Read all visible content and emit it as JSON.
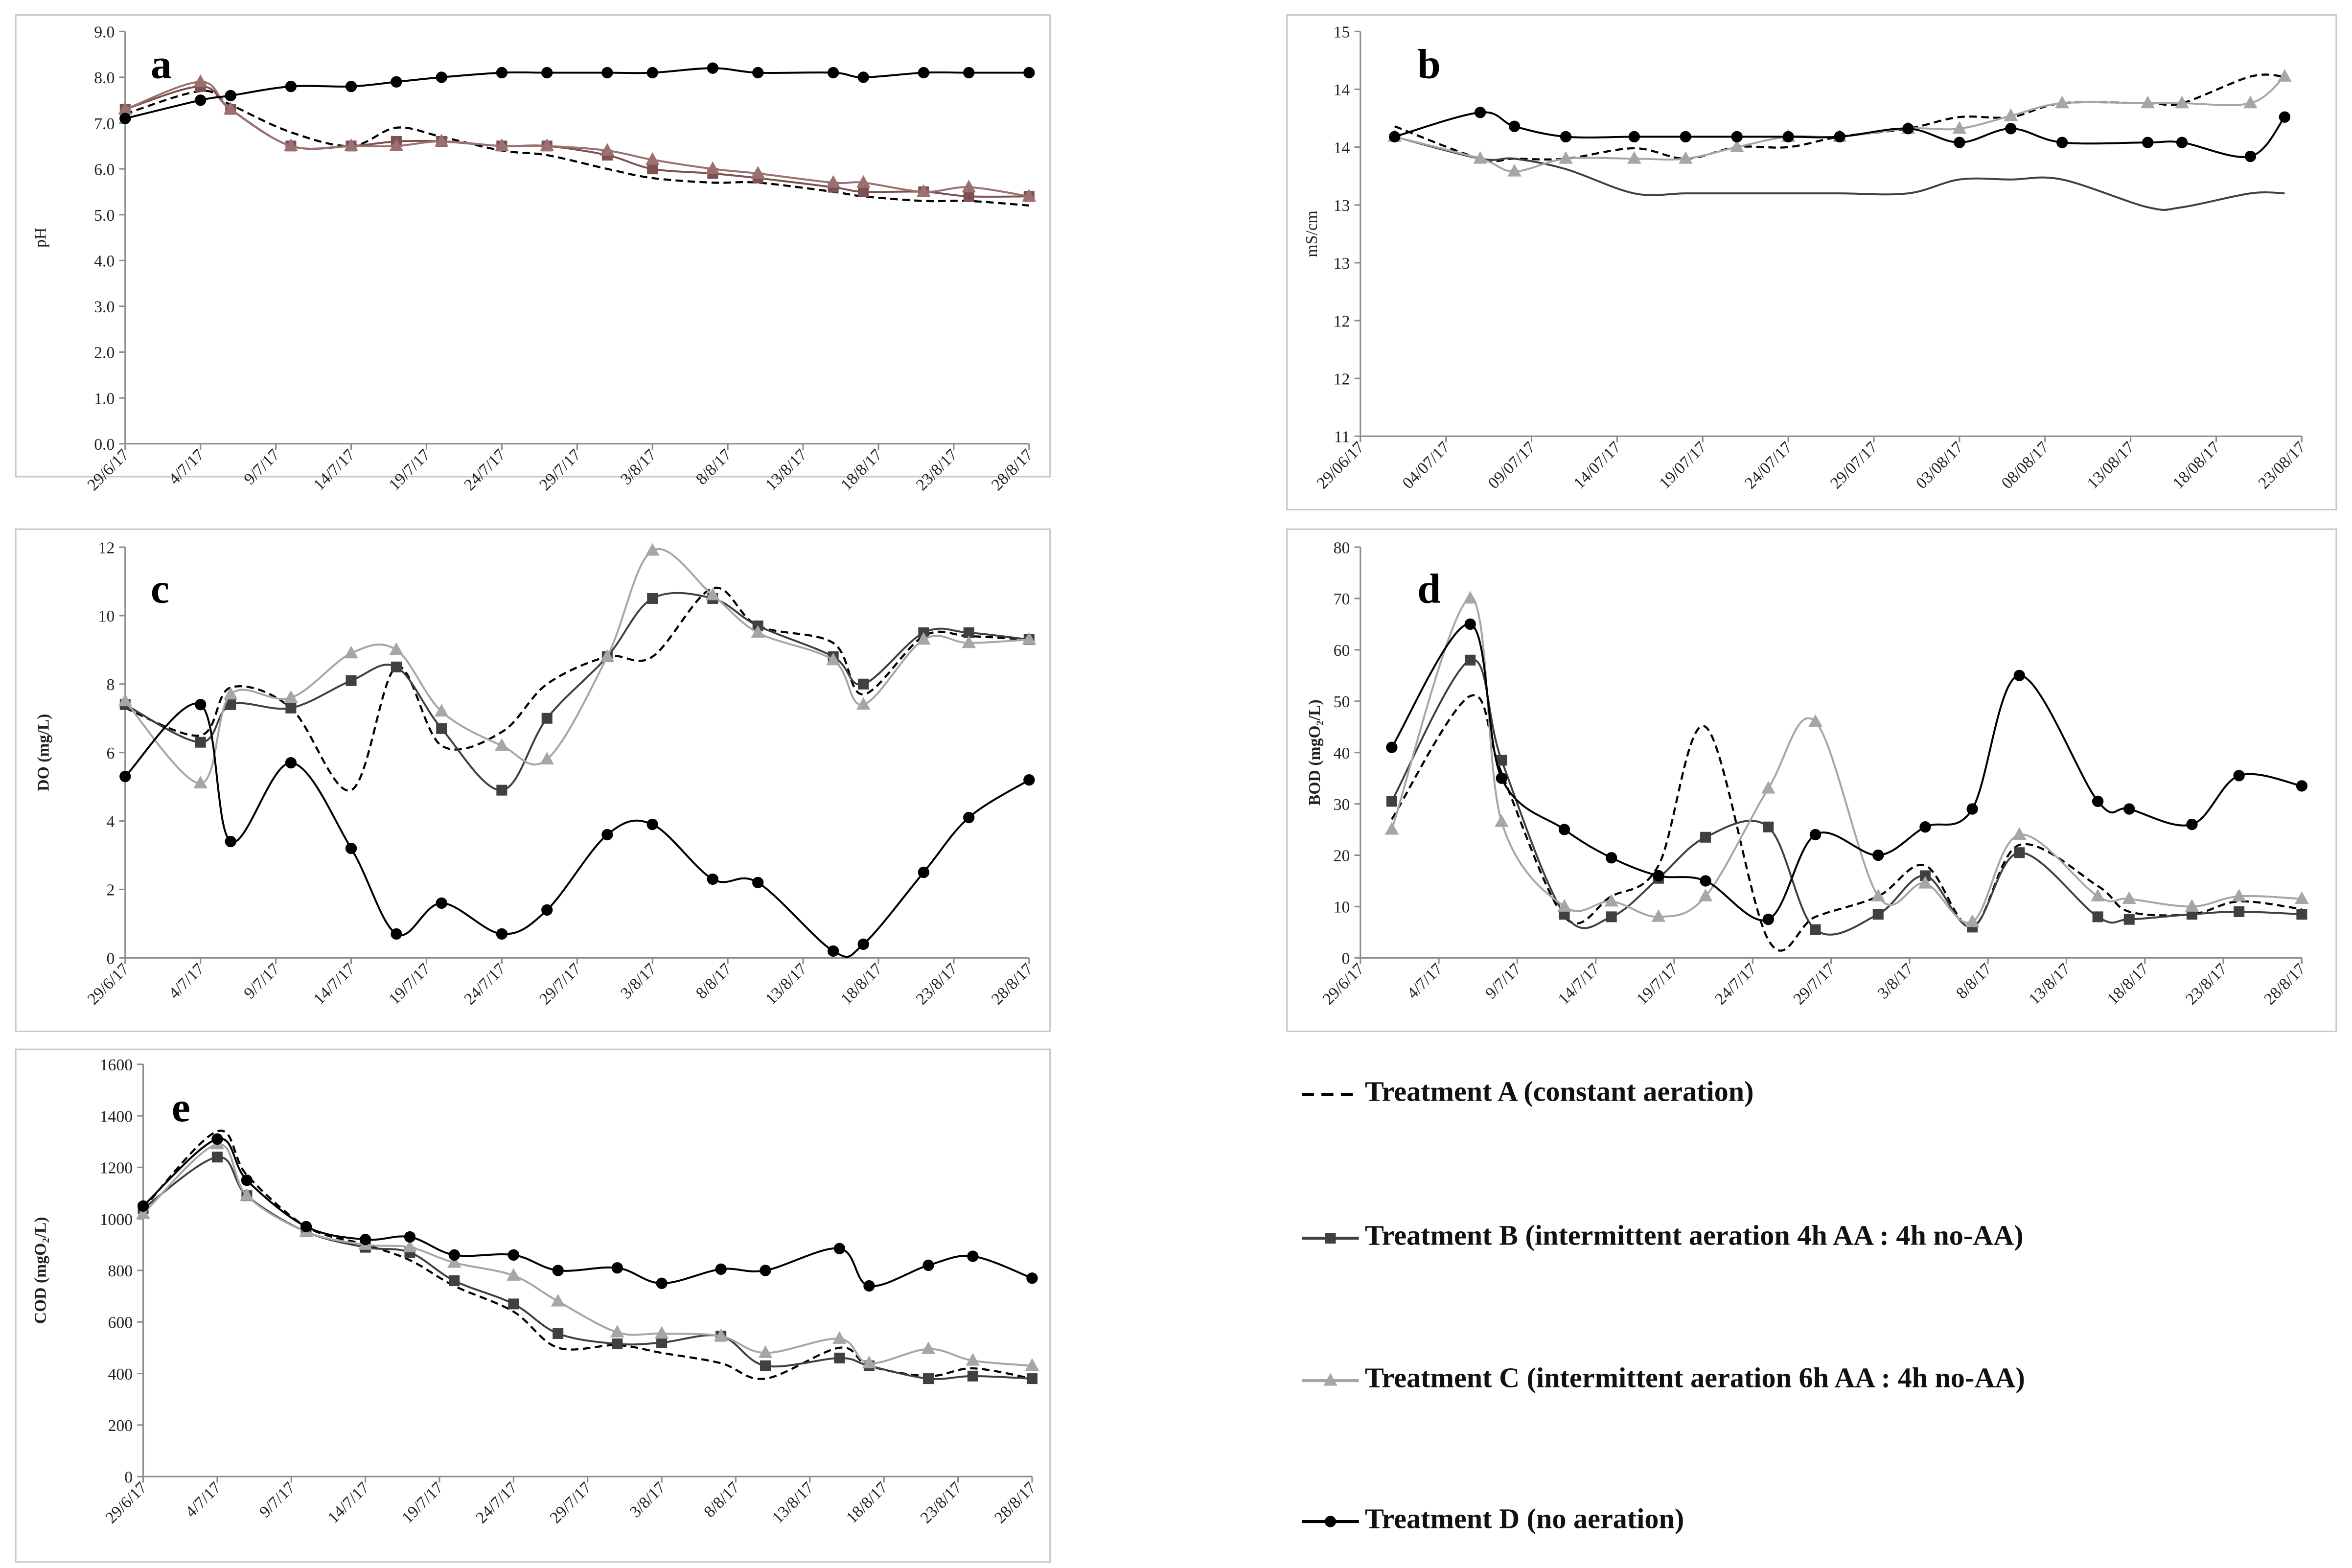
{
  "chart_data": [
    {
      "type": "line",
      "label": "a",
      "y_title": "pH",
      "x": [
        "2017-06-29",
        "2017-07-04",
        "2017-07-06",
        "2017-07-10",
        "2017-07-14",
        "2017-07-17",
        "2017-07-20",
        "2017-07-24",
        "2017-07-27",
        "2017-07-31",
        "2017-08-03",
        "2017-08-07",
        "2017-08-10",
        "2017-08-15",
        "2017-08-17",
        "2017-08-21",
        "2017-08-24",
        "2017-08-28"
      ],
      "xlim": [
        "2017-06-29",
        "2017-08-28"
      ],
      "xticks": [
        {
          "value": "2017-06-29",
          "label": "29/6/17"
        },
        {
          "value": "2017-07-04",
          "label": "4/7/17"
        },
        {
          "value": "2017-07-09",
          "label": "9/7/17"
        },
        {
          "value": "2017-07-14",
          "label": "14/7/17"
        },
        {
          "value": "2017-07-19",
          "label": "19/7/17"
        },
        {
          "value": "2017-07-24",
          "label": "24/7/17"
        },
        {
          "value": "2017-07-29",
          "label": "29/7/17"
        },
        {
          "value": "2017-08-03",
          "label": "3/8/17"
        },
        {
          "value": "2017-08-08",
          "label": "8/8/17"
        },
        {
          "value": "2017-08-13",
          "label": "13/8/17"
        },
        {
          "value": "2017-08-18",
          "label": "18/8/17"
        },
        {
          "value": "2017-08-23",
          "label": "23/8/17"
        },
        {
          "value": "2017-08-28",
          "label": "28/8/17"
        }
      ],
      "ylim": [
        0,
        9
      ],
      "yticks": [
        {
          "value": 0,
          "label": "0.0"
        },
        {
          "value": 1,
          "label": "1.0"
        },
        {
          "value": 2,
          "label": "2.0"
        },
        {
          "value": 3,
          "label": "3.0"
        },
        {
          "value": 4,
          "label": "4.0"
        },
        {
          "value": 5,
          "label": "5.0"
        },
        {
          "value": 6,
          "label": "6.0"
        },
        {
          "value": 7,
          "label": "7.0"
        },
        {
          "value": 8,
          "label": "8.0"
        },
        {
          "value": 9,
          "label": "9.0"
        }
      ],
      "series": [
        {
          "color": "#000000",
          "marker": "none",
          "dash": true,
          "values": [
            7.2,
            7.7,
            7.4,
            6.8,
            6.5,
            6.9,
            6.7,
            6.4,
            6.3,
            6.0,
            5.8,
            5.7,
            5.7,
            5.5,
            5.4,
            5.3,
            5.3,
            5.2
          ]
        },
        {
          "color": "#7f5050",
          "marker": "square",
          "dash": false,
          "values": [
            7.3,
            7.8,
            7.3,
            6.5,
            6.5,
            6.6,
            6.6,
            6.5,
            6.5,
            6.3,
            6.0,
            5.9,
            5.8,
            5.6,
            5.5,
            5.5,
            5.4,
            5.4
          ]
        },
        {
          "color": "#9a7070",
          "marker": "triangle",
          "dash": false,
          "values": [
            7.3,
            7.9,
            7.3,
            6.5,
            6.5,
            6.5,
            6.6,
            6.5,
            6.5,
            6.4,
            6.2,
            6.0,
            5.9,
            5.7,
            5.7,
            5.5,
            5.6,
            5.4
          ]
        },
        {
          "color": "#000000",
          "marker": "circle",
          "dash": false,
          "values": [
            7.1,
            7.5,
            7.6,
            7.8,
            7.8,
            7.9,
            8.0,
            8.1,
            8.1,
            8.1,
            8.1,
            8.2,
            8.1,
            8.1,
            8.0,
            8.1,
            8.1,
            8.1
          ]
        }
      ]
    },
    {
      "type": "line",
      "label": "b",
      "y_title": "mS/cm",
      "x": [
        "2017-07-01",
        "2017-07-06",
        "2017-07-08",
        "2017-07-11",
        "2017-07-15",
        "2017-07-18",
        "2017-07-21",
        "2017-07-24",
        "2017-07-27",
        "2017-07-31",
        "2017-08-03",
        "2017-08-06",
        "2017-08-09",
        "2017-08-14",
        "2017-08-16",
        "2017-08-20",
        "2017-08-22"
      ],
      "xlim": [
        "2017-06-29",
        "2017-08-23"
      ],
      "xticks": [
        {
          "value": "2017-06-29",
          "label": "29/06/17"
        },
        {
          "value": "2017-07-04",
          "label": "04/07/17"
        },
        {
          "value": "2017-07-09",
          "label": "09/07/17"
        },
        {
          "value": "2017-07-14",
          "label": "14/07/17"
        },
        {
          "value": "2017-07-19",
          "label": "19/07/17"
        },
        {
          "value": "2017-07-24",
          "label": "24/07/17"
        },
        {
          "value": "2017-07-29",
          "label": "29/07/17"
        },
        {
          "value": "2017-08-03",
          "label": "03/08/17"
        },
        {
          "value": "2017-08-08",
          "label": "08/08/17"
        },
        {
          "value": "2017-08-13",
          "label": "13/08/17"
        },
        {
          "value": "2017-08-18",
          "label": "18/08/17"
        },
        {
          "value": "2017-08-23",
          "label": "23/08/17"
        }
      ],
      "ylim": [
        11,
        14.5
      ],
      "yticks": [
        11,
        {
          "value": 11.5,
          "label": "12"
        },
        12,
        {
          "value": 12.5,
          "label": "13"
        },
        13,
        {
          "value": 13.5,
          "label": "14"
        },
        14,
        {
          "value": 14.5,
          "label": "15"
        }
      ],
      "series": [
        {
          "color": "#000000",
          "marker": "none",
          "dash": true,
          "values": [
            13.68,
            13.4,
            13.4,
            13.4,
            13.49,
            13.4,
            13.5,
            13.5,
            13.59,
            13.66,
            13.76,
            13.76,
            13.88,
            13.88,
            13.88,
            14.11,
            14.11
          ]
        },
        {
          "color": "#404040",
          "marker": "none",
          "dash": false,
          "values": [
            13.59,
            13.4,
            13.4,
            13.31,
            13.1,
            13.1,
            13.1,
            13.1,
            13.1,
            13.1,
            13.22,
            13.22,
            13.22,
            12.98,
            12.98,
            13.1,
            13.1
          ]
        },
        {
          "color": "#a6a6a6",
          "marker": "triangle",
          "dash": false,
          "values": [
            13.59,
            13.4,
            13.29,
            13.4,
            13.4,
            13.4,
            13.5,
            13.59,
            13.59,
            13.66,
            13.66,
            13.77,
            13.88,
            13.88,
            13.88,
            13.88,
            14.11
          ]
        },
        {
          "color": "#000000",
          "marker": "circle",
          "dash": false,
          "values": [
            13.59,
            13.8,
            13.68,
            13.59,
            13.59,
            13.59,
            13.59,
            13.59,
            13.59,
            13.66,
            13.54,
            13.66,
            13.54,
            13.54,
            13.54,
            13.42,
            13.76
          ]
        }
      ]
    },
    {
      "type": "line",
      "label": "c",
      "y_title": "DO (mg/L)",
      "x": [
        "2017-06-29",
        "2017-07-04",
        "2017-07-06",
        "2017-07-10",
        "2017-07-14",
        "2017-07-17",
        "2017-07-20",
        "2017-07-24",
        "2017-07-27",
        "2017-07-31",
        "2017-08-03",
        "2017-08-07",
        "2017-08-10",
        "2017-08-15",
        "2017-08-17",
        "2017-08-21",
        "2017-08-24",
        "2017-08-28"
      ],
      "xlim": [
        "2017-06-29",
        "2017-08-28"
      ],
      "xticks": [
        {
          "value": "2017-06-29",
          "label": "29/6/17"
        },
        {
          "value": "2017-07-04",
          "label": "4/7/17"
        },
        {
          "value": "2017-07-09",
          "label": "9/7/17"
        },
        {
          "value": "2017-07-14",
          "label": "14/7/17"
        },
        {
          "value": "2017-07-19",
          "label": "19/7/17"
        },
        {
          "value": "2017-07-24",
          "label": "24/7/17"
        },
        {
          "value": "2017-07-29",
          "label": "29/7/17"
        },
        {
          "value": "2017-08-03",
          "label": "3/8/17"
        },
        {
          "value": "2017-08-08",
          "label": "8/8/17"
        },
        {
          "value": "2017-08-13",
          "label": "13/8/17"
        },
        {
          "value": "2017-08-18",
          "label": "18/8/17"
        },
        {
          "value": "2017-08-23",
          "label": "23/8/17"
        },
        {
          "value": "2017-08-28",
          "label": "28/8/17"
        }
      ],
      "ylim": [
        0,
        12
      ],
      "yticks": [
        0,
        2,
        4,
        6,
        8,
        10,
        12
      ],
      "series": [
        {
          "color": "#000000",
          "marker": "none",
          "dash": true,
          "values": [
            7.3,
            6.5,
            7.9,
            7.3,
            4.9,
            8.5,
            6.2,
            6.6,
            8.0,
            8.8,
            8.8,
            10.8,
            9.7,
            9.2,
            7.7,
            9.4,
            9.4,
            9.3
          ]
        },
        {
          "color": "#404040",
          "marker": "square",
          "dash": false,
          "values": [
            7.4,
            6.3,
            7.4,
            7.3,
            8.1,
            8.5,
            6.7,
            4.9,
            7.0,
            8.8,
            10.5,
            10.5,
            9.7,
            8.8,
            8.0,
            9.5,
            9.5,
            9.3
          ]
        },
        {
          "color": "#a6a6a6",
          "marker": "triangle",
          "dash": false,
          "values": [
            7.5,
            5.1,
            7.7,
            7.6,
            8.9,
            9.0,
            7.2,
            6.2,
            5.8,
            8.8,
            11.9,
            10.6,
            9.5,
            8.7,
            7.4,
            9.3,
            9.2,
            9.3
          ]
        },
        {
          "color": "#000000",
          "marker": "circle",
          "dash": false,
          "values": [
            5.3,
            7.4,
            3.4,
            5.7,
            3.2,
            0.7,
            1.6,
            0.7,
            1.4,
            3.6,
            3.9,
            2.3,
            2.2,
            0.2,
            0.4,
            2.5,
            4.1,
            5.2
          ]
        }
      ]
    },
    {
      "type": "line",
      "label": "d",
      "y_title": "BOD (mgO₂/L)",
      "x": [
        "2017-07-01",
        "2017-07-06",
        "2017-07-08",
        "2017-07-12",
        "2017-07-15",
        "2017-07-18",
        "2017-07-21",
        "2017-07-25",
        "2017-07-28",
        "2017-08-01",
        "2017-08-04",
        "2017-08-07",
        "2017-08-10",
        "2017-08-15",
        "2017-08-17",
        "2017-08-21",
        "2017-08-24",
        "2017-08-28"
      ],
      "xlim": [
        "2017-06-29",
        "2017-08-28"
      ],
      "xticks": [
        {
          "value": "2017-06-29",
          "label": "29/6/17"
        },
        {
          "value": "2017-07-04",
          "label": "4/7/17"
        },
        {
          "value": "2017-07-09",
          "label": "9/7/17"
        },
        {
          "value": "2017-07-14",
          "label": "14/7/17"
        },
        {
          "value": "2017-07-19",
          "label": "19/7/17"
        },
        {
          "value": "2017-07-24",
          "label": "24/7/17"
        },
        {
          "value": "2017-07-29",
          "label": "29/7/17"
        },
        {
          "value": "2017-08-03",
          "label": "3/8/17"
        },
        {
          "value": "2017-08-08",
          "label": "8/8/17"
        },
        {
          "value": "2017-08-13",
          "label": "13/8/17"
        },
        {
          "value": "2017-08-18",
          "label": "18/8/17"
        },
        {
          "value": "2017-08-23",
          "label": "23/8/17"
        },
        {
          "value": "2017-08-28",
          "label": "28/8/17"
        }
      ],
      "ylim": [
        0,
        80
      ],
      "yticks": [
        0,
        10,
        20,
        30,
        40,
        50,
        60,
        70,
        80
      ],
      "series": [
        {
          "color": "#000000",
          "marker": "none",
          "dash": true,
          "values": [
            27,
            51,
            36,
            8,
            12,
            18,
            45,
            3.5,
            8,
            12,
            18,
            6,
            22,
            14,
            9,
            8.5,
            11,
            9.5
          ]
        },
        {
          "color": "#404040",
          "marker": "square",
          "dash": false,
          "values": [
            30.5,
            58,
            38.5,
            8.5,
            8,
            15.5,
            23.5,
            25.5,
            5.5,
            8.5,
            16,
            6,
            20.5,
            8,
            7.5,
            8.5,
            9,
            8.5
          ]
        },
        {
          "color": "#a6a6a6",
          "marker": "triangle",
          "dash": false,
          "values": [
            25,
            70,
            26.5,
            10,
            11,
            8,
            12,
            33,
            46,
            12,
            14.5,
            7,
            24,
            12,
            11.5,
            10,
            12,
            11.5
          ]
        },
        {
          "color": "#000000",
          "marker": "circle",
          "dash": false,
          "values": [
            41,
            65,
            35,
            25,
            19.5,
            16,
            15,
            7.5,
            24,
            20,
            25.5,
            29,
            55,
            30.5,
            29,
            26,
            35.5,
            33.5
          ]
        }
      ]
    },
    {
      "type": "line",
      "label": "e",
      "y_title": "COD (mgO₂/L)",
      "x": [
        "2017-06-29",
        "2017-07-04",
        "2017-07-06",
        "2017-07-10",
        "2017-07-14",
        "2017-07-17",
        "2017-07-20",
        "2017-07-24",
        "2017-07-27",
        "2017-07-31",
        "2017-08-03",
        "2017-08-07",
        "2017-08-10",
        "2017-08-15",
        "2017-08-17",
        "2017-08-21",
        "2017-08-24",
        "2017-08-28"
      ],
      "xlim": [
        "2017-06-29",
        "2017-08-28"
      ],
      "xticks": [
        {
          "value": "2017-06-29",
          "label": "29/6/17"
        },
        {
          "value": "2017-07-04",
          "label": "4/7/17"
        },
        {
          "value": "2017-07-09",
          "label": "9/7/17"
        },
        {
          "value": "2017-07-14",
          "label": "14/7/17"
        },
        {
          "value": "2017-07-19",
          "label": "19/7/17"
        },
        {
          "value": "2017-07-24",
          "label": "24/7/17"
        },
        {
          "value": "2017-07-29",
          "label": "29/7/17"
        },
        {
          "value": "2017-08-03",
          "label": "3/8/17"
        },
        {
          "value": "2017-08-08",
          "label": "8/8/17"
        },
        {
          "value": "2017-08-13",
          "label": "13/8/17"
        },
        {
          "value": "2017-08-18",
          "label": "18/8/17"
        },
        {
          "value": "2017-08-23",
          "label": "23/8/17"
        },
        {
          "value": "2017-08-28",
          "label": "28/8/17"
        }
      ],
      "ylim": [
        0,
        1600
      ],
      "yticks": [
        0,
        200,
        400,
        600,
        800,
        1000,
        1200,
        1400,
        1600
      ],
      "series": [
        {
          "color": "#000000",
          "marker": "none",
          "dash": true,
          "values": [
            1040,
            1340,
            1170,
            970,
            900,
            840,
            740,
            640,
            500,
            510,
            480,
            440,
            380,
            500,
            430,
            390,
            420,
            380
          ]
        },
        {
          "color": "#404040",
          "marker": "square",
          "dash": false,
          "values": [
            1040,
            1240,
            1090,
            950,
            890,
            870,
            760,
            670,
            555,
            515,
            520,
            545,
            430,
            460,
            430,
            380,
            390,
            380
          ]
        },
        {
          "color": "#a6a6a6",
          "marker": "triangle",
          "dash": false,
          "values": [
            1020,
            1290,
            1090,
            950,
            900,
            890,
            830,
            780,
            680,
            560,
            555,
            545,
            480,
            535,
            440,
            495,
            450,
            430
          ]
        },
        {
          "color": "#000000",
          "marker": "circle",
          "dash": false,
          "values": [
            1050,
            1310,
            1150,
            970,
            920,
            930,
            860,
            860,
            800,
            810,
            750,
            805,
            800,
            885,
            740,
            820,
            855,
            770
          ]
        }
      ]
    }
  ],
  "legend": {
    "entries": [
      {
        "name": "Treatment A (constant aeration)",
        "color": "#000000",
        "marker": "none",
        "dash": true
      },
      {
        "name": "Treatment B (intermittent aeration 4h AA : 4h no-AA)",
        "color": "#404040",
        "marker": "square",
        "dash": false
      },
      {
        "name": "Treatment C (intermittent aeration 6h AA : 4h no-AA)",
        "color": "#a6a6a6",
        "marker": "triangle",
        "dash": false
      },
      {
        "name": "Treatment D (no aeration)",
        "color": "#000000",
        "marker": "circle",
        "dash": false
      }
    ]
  }
}
